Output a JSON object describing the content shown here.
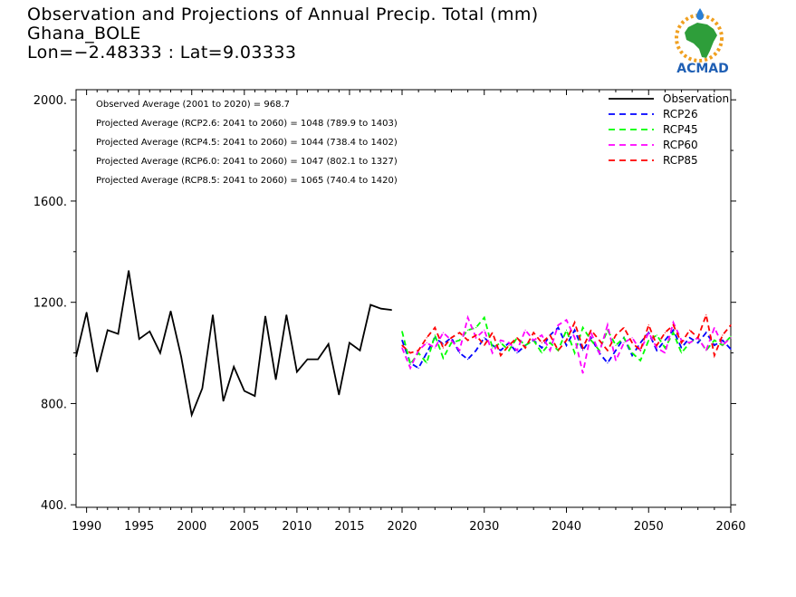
{
  "title": {
    "line1": "Observation and Projections of Annual Precip. Total (mm)",
    "line2": "Ghana_BOLE",
    "line3": "Lon=−2.48333 : Lat=9.03333"
  },
  "logo": {
    "text": "ACMAD"
  },
  "chart_data": {
    "type": "line",
    "xlim": [
      1989,
      2060
    ],
    "ylim": [
      390,
      2040
    ],
    "x_ticks": [
      1990,
      1995,
      2000,
      2005,
      2010,
      2015,
      2020,
      2030,
      2040,
      2050,
      2060
    ],
    "y_ticks": [
      400,
      800,
      1200,
      1600,
      2000
    ],
    "y_tick_labels": [
      "400.",
      "800.",
      "1200.",
      "1600.",
      "2000."
    ],
    "grid": false,
    "legend_position": "top-right",
    "annotations": [
      "Observed Average (2001 to 2020) = 968.7",
      "Projected Average (RCP2.6: 2041 to 2060) = 1048 (789.9 to 1403)",
      "Projected Average (RCP4.5: 2041 to 2060) = 1044 (738.4 to 1402)",
      "Projected Average (RCP6.0: 2041 to 2060) = 1047 (802.1 to 1327)",
      "Projected Average (RCP8.5: 2041 to 2060) = 1065 (740.4 to 1420)"
    ],
    "series": [
      {
        "name": "Observation",
        "color": "#000000",
        "dash": "solid",
        "x": [
          1989,
          1990,
          1991,
          1992,
          1993,
          1994,
          1995,
          1996,
          1997,
          1998,
          1999,
          2000,
          2001,
          2002,
          2003,
          2004,
          2005,
          2006,
          2007,
          2008,
          2009,
          2010,
          2011,
          2012,
          2013,
          2014,
          2015,
          2016,
          2017,
          2018,
          2019
        ],
        "values": [
          985,
          1160,
          925,
          1090,
          1075,
          1325,
          1055,
          1085,
          1000,
          1165,
          985,
          755,
          860,
          1150,
          810,
          945,
          850,
          830,
          1145,
          895,
          1150,
          925,
          975,
          975,
          1035,
          835,
          1040,
          1010,
          1190,
          1175,
          1170
        ]
      },
      {
        "name": "RCP26",
        "color": "#0000ff",
        "dash": "dashed",
        "x": [
          2020,
          2021,
          2022,
          2023,
          2024,
          2025,
          2026,
          2027,
          2028,
          2029,
          2030,
          2031,
          2032,
          2033,
          2034,
          2035,
          2036,
          2037,
          2038,
          2039,
          2040,
          2041,
          2042,
          2043,
          2044,
          2045,
          2046,
          2047,
          2048,
          2049,
          2050,
          2051,
          2052,
          2053,
          2054,
          2055,
          2056,
          2057,
          2058,
          2059,
          2060
        ],
        "values": [
          1050,
          960,
          940,
          1000,
          1060,
          1035,
          1060,
          1000,
          975,
          1010,
          1060,
          1030,
          1010,
          1040,
          1000,
          1030,
          1050,
          1020,
          1070,
          1100,
          1030,
          1090,
          1010,
          1060,
          1000,
          960,
          1010,
          1060,
          990,
          1040,
          1080,
          1010,
          1050,
          1090,
          1020,
          1060,
          1040,
          1080,
          1030,
          1050,
          1015
        ]
      },
      {
        "name": "RCP45",
        "color": "#00ff00",
        "dash": "dashed",
        "x": [
          2020,
          2021,
          2022,
          2023,
          2024,
          2025,
          2026,
          2027,
          2028,
          2029,
          2030,
          2031,
          2032,
          2033,
          2034,
          2035,
          2036,
          2037,
          2038,
          2039,
          2040,
          2041,
          2042,
          2043,
          2044,
          2045,
          2046,
          2047,
          2048,
          2049,
          2050,
          2051,
          2052,
          2053,
          2054,
          2055,
          2056,
          2057,
          2058,
          2059,
          2060
        ],
        "values": [
          1085,
          955,
          1000,
          960,
          1070,
          980,
          1040,
          1050,
          1090,
          1100,
          1140,
          1020,
          1040,
          1010,
          1060,
          1030,
          1050,
          1000,
          1040,
          1010,
          1090,
          1000,
          1100,
          1050,
          1010,
          1090,
          1030,
          1060,
          1000,
          970,
          1050,
          1070,
          1020,
          1080,
          1000,
          1040,
          1060,
          1010,
          1050,
          1030,
          1065
        ]
      },
      {
        "name": "RCP60",
        "color": "#ff00ff",
        "dash": "dashed",
        "x": [
          2020,
          2021,
          2022,
          2023,
          2024,
          2025,
          2026,
          2027,
          2028,
          2029,
          2030,
          2031,
          2032,
          2033,
          2034,
          2035,
          2036,
          2037,
          2038,
          2039,
          2040,
          2041,
          2042,
          2043,
          2044,
          2045,
          2046,
          2047,
          2048,
          2049,
          2050,
          2051,
          2052,
          2053,
          2054,
          2055,
          2056,
          2057,
          2058,
          2059,
          2060
        ],
        "values": [
          1020,
          940,
          1010,
          1040,
          1020,
          1080,
          1050,
          1010,
          1140,
          1060,
          1090,
          1000,
          1050,
          1040,
          1010,
          1090,
          1050,
          1070,
          1010,
          1110,
          1130,
          1060,
          920,
          1080,
          1000,
          1110,
          970,
          1040,
          1060,
          1010,
          1080,
          1020,
          1000,
          1120,
          1050,
          1040,
          1060,
          1010,
          1100,
          1030,
          1060
        ]
      },
      {
        "name": "RCP85",
        "color": "#ff0000",
        "dash": "dashed",
        "x": [
          2020,
          2021,
          2022,
          2023,
          2024,
          2025,
          2026,
          2027,
          2028,
          2029,
          2030,
          2031,
          2032,
          2033,
          2034,
          2035,
          2036,
          2037,
          2038,
          2039,
          2040,
          2041,
          2042,
          2043,
          2044,
          2045,
          2046,
          2047,
          2048,
          2049,
          2050,
          2051,
          2052,
          2053,
          2054,
          2055,
          2056,
          2057,
          2058,
          2059,
          2060
        ],
        "values": [
          1030,
          1000,
          1010,
          1060,
          1100,
          1020,
          1060,
          1080,
          1050,
          1070,
          1030,
          1080,
          990,
          1030,
          1060,
          1020,
          1080,
          1040,
          1070,
          1010,
          1050,
          1120,
          1020,
          1090,
          1050,
          1010,
          1070,
          1100,
          1040,
          1010,
          1110,
          1030,
          1080,
          1110,
          1040,
          1090,
          1060,
          1150,
          990,
          1070,
          1110
        ]
      }
    ]
  }
}
